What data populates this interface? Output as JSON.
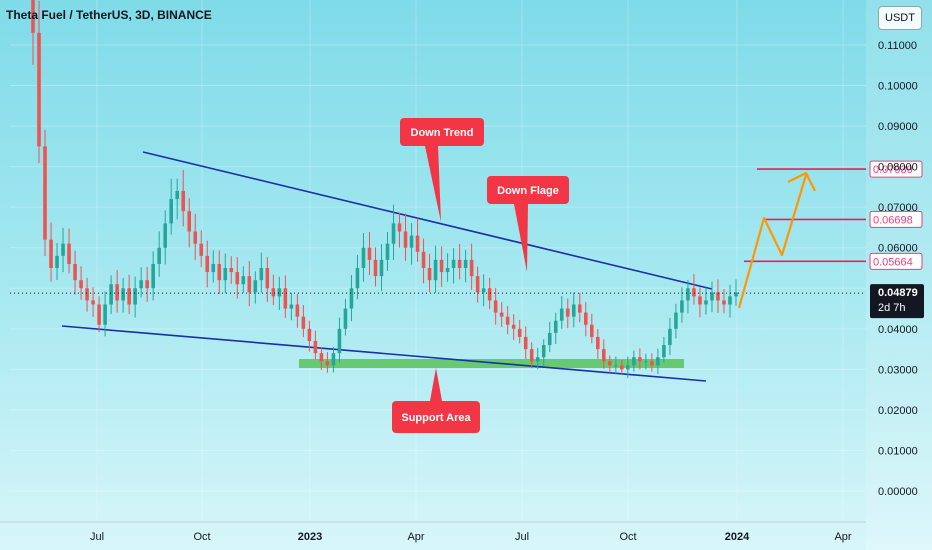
{
  "header": {
    "title": "Theta Fuel / TetherUS, 3D, BINANCE",
    "currency_button": "USDT"
  },
  "chart_data": {
    "type": "candlestick",
    "ylim": [
      0.0,
      0.115
    ],
    "y_ticks": [
      "0.11000",
      "0.10000",
      "0.09000",
      "0.08000",
      "0.07000",
      "0.06000",
      "0.05000",
      "0.04000",
      "0.03000",
      "0.02000",
      "0.01000",
      "0.00000"
    ],
    "x_ticks": [
      "Jul",
      "Oct",
      "2023",
      "Apr",
      "Jul",
      "Oct",
      "2024",
      "Apr"
    ],
    "x_ticks_bold": [
      "2023",
      "2024"
    ],
    "price_series": [
      0.113,
      0.085,
      0.062,
      0.055,
      0.058,
      0.061,
      0.056,
      0.052,
      0.05,
      0.047,
      0.046,
      0.041,
      0.046,
      0.051,
      0.047,
      0.05,
      0.046,
      0.05,
      0.052,
      0.05,
      0.056,
      0.06,
      0.066,
      0.072,
      0.074,
      0.069,
      0.064,
      0.061,
      0.058,
      0.054,
      0.056,
      0.052,
      0.055,
      0.054,
      0.051,
      0.053,
      0.049,
      0.052,
      0.055,
      0.05,
      0.048,
      0.05,
      0.045,
      0.046,
      0.043,
      0.04,
      0.037,
      0.034,
      0.032,
      0.031,
      0.034,
      0.04,
      0.045,
      0.05,
      0.055,
      0.06,
      0.057,
      0.053,
      0.057,
      0.061,
      0.066,
      0.064,
      0.06,
      0.063,
      0.059,
      0.055,
      0.052,
      0.057,
      0.054,
      0.055,
      0.057,
      0.055,
      0.057,
      0.053,
      0.049,
      0.05,
      0.047,
      0.044,
      0.043,
      0.041,
      0.04,
      0.038,
      0.035,
      0.032,
      0.033,
      0.036,
      0.039,
      0.042,
      0.045,
      0.043,
      0.046,
      0.044,
      0.041,
      0.038,
      0.035,
      0.032,
      0.031,
      0.031,
      0.03,
      0.031,
      0.033,
      0.032,
      0.032,
      0.031,
      0.033,
      0.036,
      0.04,
      0.044,
      0.047,
      0.05,
      0.048,
      0.046,
      0.047,
      0.049,
      0.047,
      0.046,
      0.048,
      0.049
    ],
    "last_price": "0.04879",
    "countdown": "2d 7h",
    "levels": [
      {
        "price": 0.07939,
        "label": "0.07939"
      },
      {
        "price": 0.06698,
        "label": "0.06698"
      },
      {
        "price": 0.05664,
        "label": "0.05664"
      }
    ],
    "annotations": [
      {
        "text": "Down Trend"
      },
      {
        "text": "Down Flage"
      },
      {
        "text": "Support Area"
      }
    ],
    "colors": {
      "up": "#26a69a",
      "down": "#ef5350",
      "trendline": "#1b2fa6",
      "support": "#5cc25a",
      "level": "#e91e63",
      "projection": "#ff9800",
      "bubble": "#f23645",
      "last_price_bg": "#131722"
    }
  }
}
